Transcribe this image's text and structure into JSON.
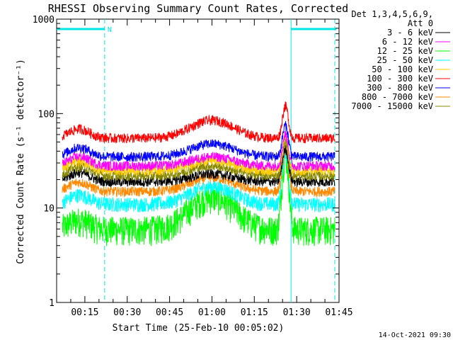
{
  "chart_data": {
    "type": "line",
    "title": "RHESSI Observing Summary Count Rates, Corrected",
    "xlabel": "Start Time (25-Feb-10 00:05:02)",
    "ylabel": "Corrected Count Rate (s⁻¹ detector⁻¹)",
    "y_scale": "log",
    "ylim": [
      1,
      1000
    ],
    "xlim_minutes": [
      5,
      105
    ],
    "x_ticks": [
      {
        "minute": 15,
        "label": "00:15"
      },
      {
        "minute": 30,
        "label": "00:30"
      },
      {
        "minute": 45,
        "label": "00:45"
      },
      {
        "minute": 60,
        "label": "01:00"
      },
      {
        "minute": 75,
        "label": "01:15"
      },
      {
        "minute": 90,
        "label": "01:30"
      },
      {
        "minute": 105,
        "label": "01:45"
      }
    ],
    "y_ticks": [
      {
        "value": 1,
        "label": "1"
      },
      {
        "value": 10,
        "label": "10"
      },
      {
        "value": 100,
        "label": "100"
      },
      {
        "value": 1000,
        "label": "1000"
      }
    ],
    "legend": {
      "position": "right",
      "header": [
        "Det 1,3,4,5,6,9,",
        "Att 0"
      ]
    },
    "series": [
      {
        "name": "3 - 6 keV",
        "color": "#000000",
        "base": 19,
        "mid": 23,
        "peak": 42
      },
      {
        "name": "6 - 12 keV",
        "color": "#ff00ff",
        "base": 28,
        "mid": 35,
        "peak": 60
      },
      {
        "name": "12 - 25 keV",
        "color": "#00ff00",
        "base": 6,
        "mid": 13,
        "peak": 36
      },
      {
        "name": "25 - 50 keV",
        "color": "#00ffff",
        "base": 11,
        "mid": 17,
        "peak": 38
      },
      {
        "name": "50 - 100 keV",
        "color": "#ffcc00",
        "base": 25,
        "mid": 32,
        "peak": 55
      },
      {
        "name": "100 - 300 keV",
        "color": "#ff0000",
        "base": 55,
        "mid": 85,
        "peak": 120
      },
      {
        "name": "300 - 800 keV",
        "color": "#0000ff",
        "base": 35,
        "mid": 48,
        "peak": 75
      },
      {
        "name": "800 - 7000 keV",
        "color": "#ff8800",
        "base": 15,
        "mid": 21,
        "peak": 40
      },
      {
        "name": "7000 - 15000 keV",
        "color": "#888800",
        "base": 22,
        "mid": 28,
        "peak": 50
      }
    ],
    "attenuator_bars": [
      {
        "start": 5,
        "end": 22,
        "label": "N"
      },
      {
        "start": 88,
        "end": 104,
        "label": ""
      }
    ],
    "vertical_markers": [
      {
        "minute": 22,
        "style": "dashed"
      },
      {
        "minute": 88,
        "style": "solid"
      },
      {
        "minute": 103.5,
        "style": "dashed"
      }
    ]
  },
  "footer_timestamp": "14-Oct-2021 09:30"
}
